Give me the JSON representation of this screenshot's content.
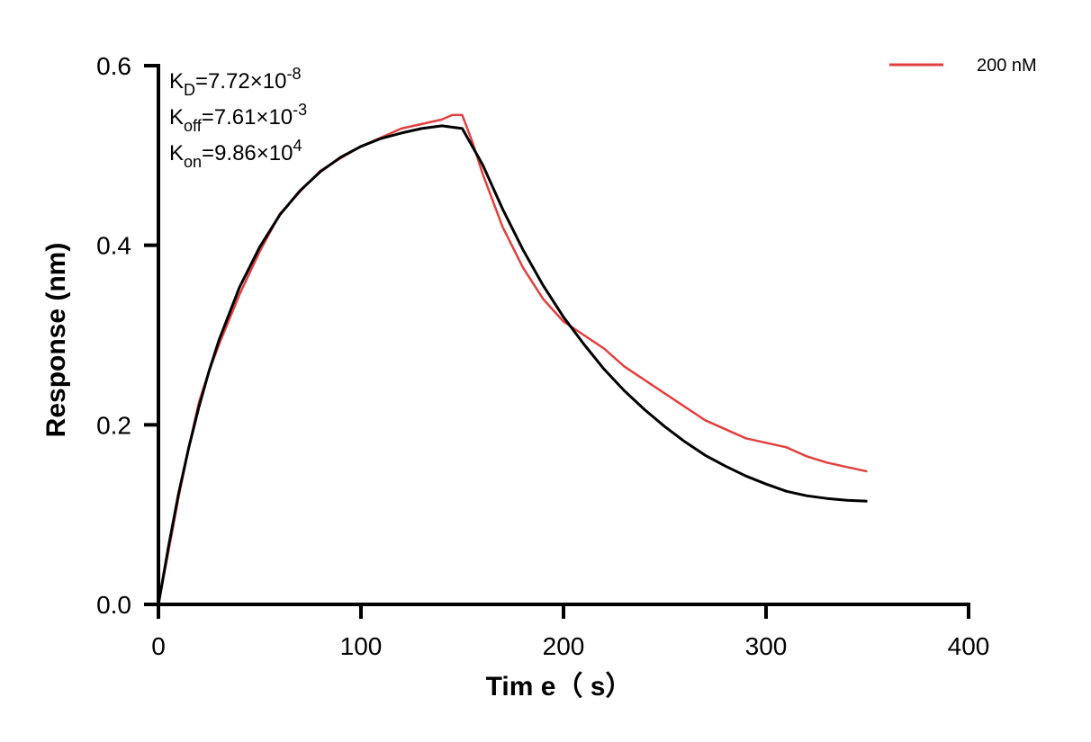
{
  "chart_data": {
    "type": "line",
    "xlabel": "Tim e（ s）",
    "ylabel": "Response (nm)",
    "xlim": [
      0,
      400
    ],
    "ylim": [
      0,
      0.6
    ],
    "x_ticks": [
      0,
      100,
      200,
      300,
      400
    ],
    "x_tick_labels": [
      "0",
      "100",
      "200",
      "300",
      "400"
    ],
    "y_ticks": [
      0,
      0.2,
      0.4,
      0.6
    ],
    "y_tick_labels": [
      "0.0",
      "0.2",
      "0.4",
      "0.6"
    ],
    "grid": false,
    "legend_position": "top-right",
    "annotations": [
      {
        "base": "K",
        "sub": "D",
        "value": "=7.72×10",
        "sup": "-8"
      },
      {
        "base": "K",
        "sub": "off",
        "value": "=7.61×10",
        "sup": "-3"
      },
      {
        "base": "K",
        "sub": "on",
        "value": "=9.86×10",
        "sup": "4"
      }
    ],
    "series": [
      {
        "name": "200 nM",
        "color": "#e0403f",
        "x": [
          0,
          5,
          10,
          15,
          20,
          25,
          30,
          40,
          50,
          60,
          70,
          80,
          90,
          100,
          110,
          120,
          130,
          140,
          145,
          150,
          155,
          160,
          170,
          180,
          190,
          200,
          210,
          220,
          230,
          240,
          250,
          260,
          270,
          280,
          290,
          300,
          310,
          320,
          330,
          340,
          350
        ],
        "y": [
          0.0,
          0.06,
          0.12,
          0.175,
          0.225,
          0.26,
          0.29,
          0.345,
          0.393,
          0.435,
          0.46,
          0.483,
          0.497,
          0.51,
          0.52,
          0.53,
          0.535,
          0.54,
          0.545,
          0.545,
          0.515,
          0.48,
          0.42,
          0.375,
          0.34,
          0.315,
          0.3,
          0.285,
          0.265,
          0.25,
          0.235,
          0.22,
          0.205,
          0.195,
          0.185,
          0.18,
          0.175,
          0.165,
          0.158,
          0.153,
          0.148
        ]
      },
      {
        "name": "",
        "color": "#000000",
        "x": [
          0,
          5,
          10,
          15,
          20,
          25,
          30,
          40,
          50,
          60,
          70,
          80,
          90,
          100,
          110,
          120,
          130,
          140,
          150,
          160,
          170,
          180,
          190,
          200,
          210,
          220,
          230,
          240,
          250,
          260,
          270,
          280,
          290,
          300,
          310,
          320,
          330,
          340,
          350
        ],
        "y": [
          0.0,
          0.065,
          0.124,
          0.175,
          0.22,
          0.26,
          0.295,
          0.353,
          0.398,
          0.434,
          0.461,
          0.482,
          0.498,
          0.51,
          0.519,
          0.525,
          0.53,
          0.533,
          0.53,
          0.49,
          0.44,
          0.395,
          0.355,
          0.32,
          0.29,
          0.262,
          0.238,
          0.217,
          0.198,
          0.181,
          0.166,
          0.154,
          0.143,
          0.134,
          0.126,
          0.121,
          0.118,
          0.116,
          0.115
        ]
      }
    ]
  }
}
